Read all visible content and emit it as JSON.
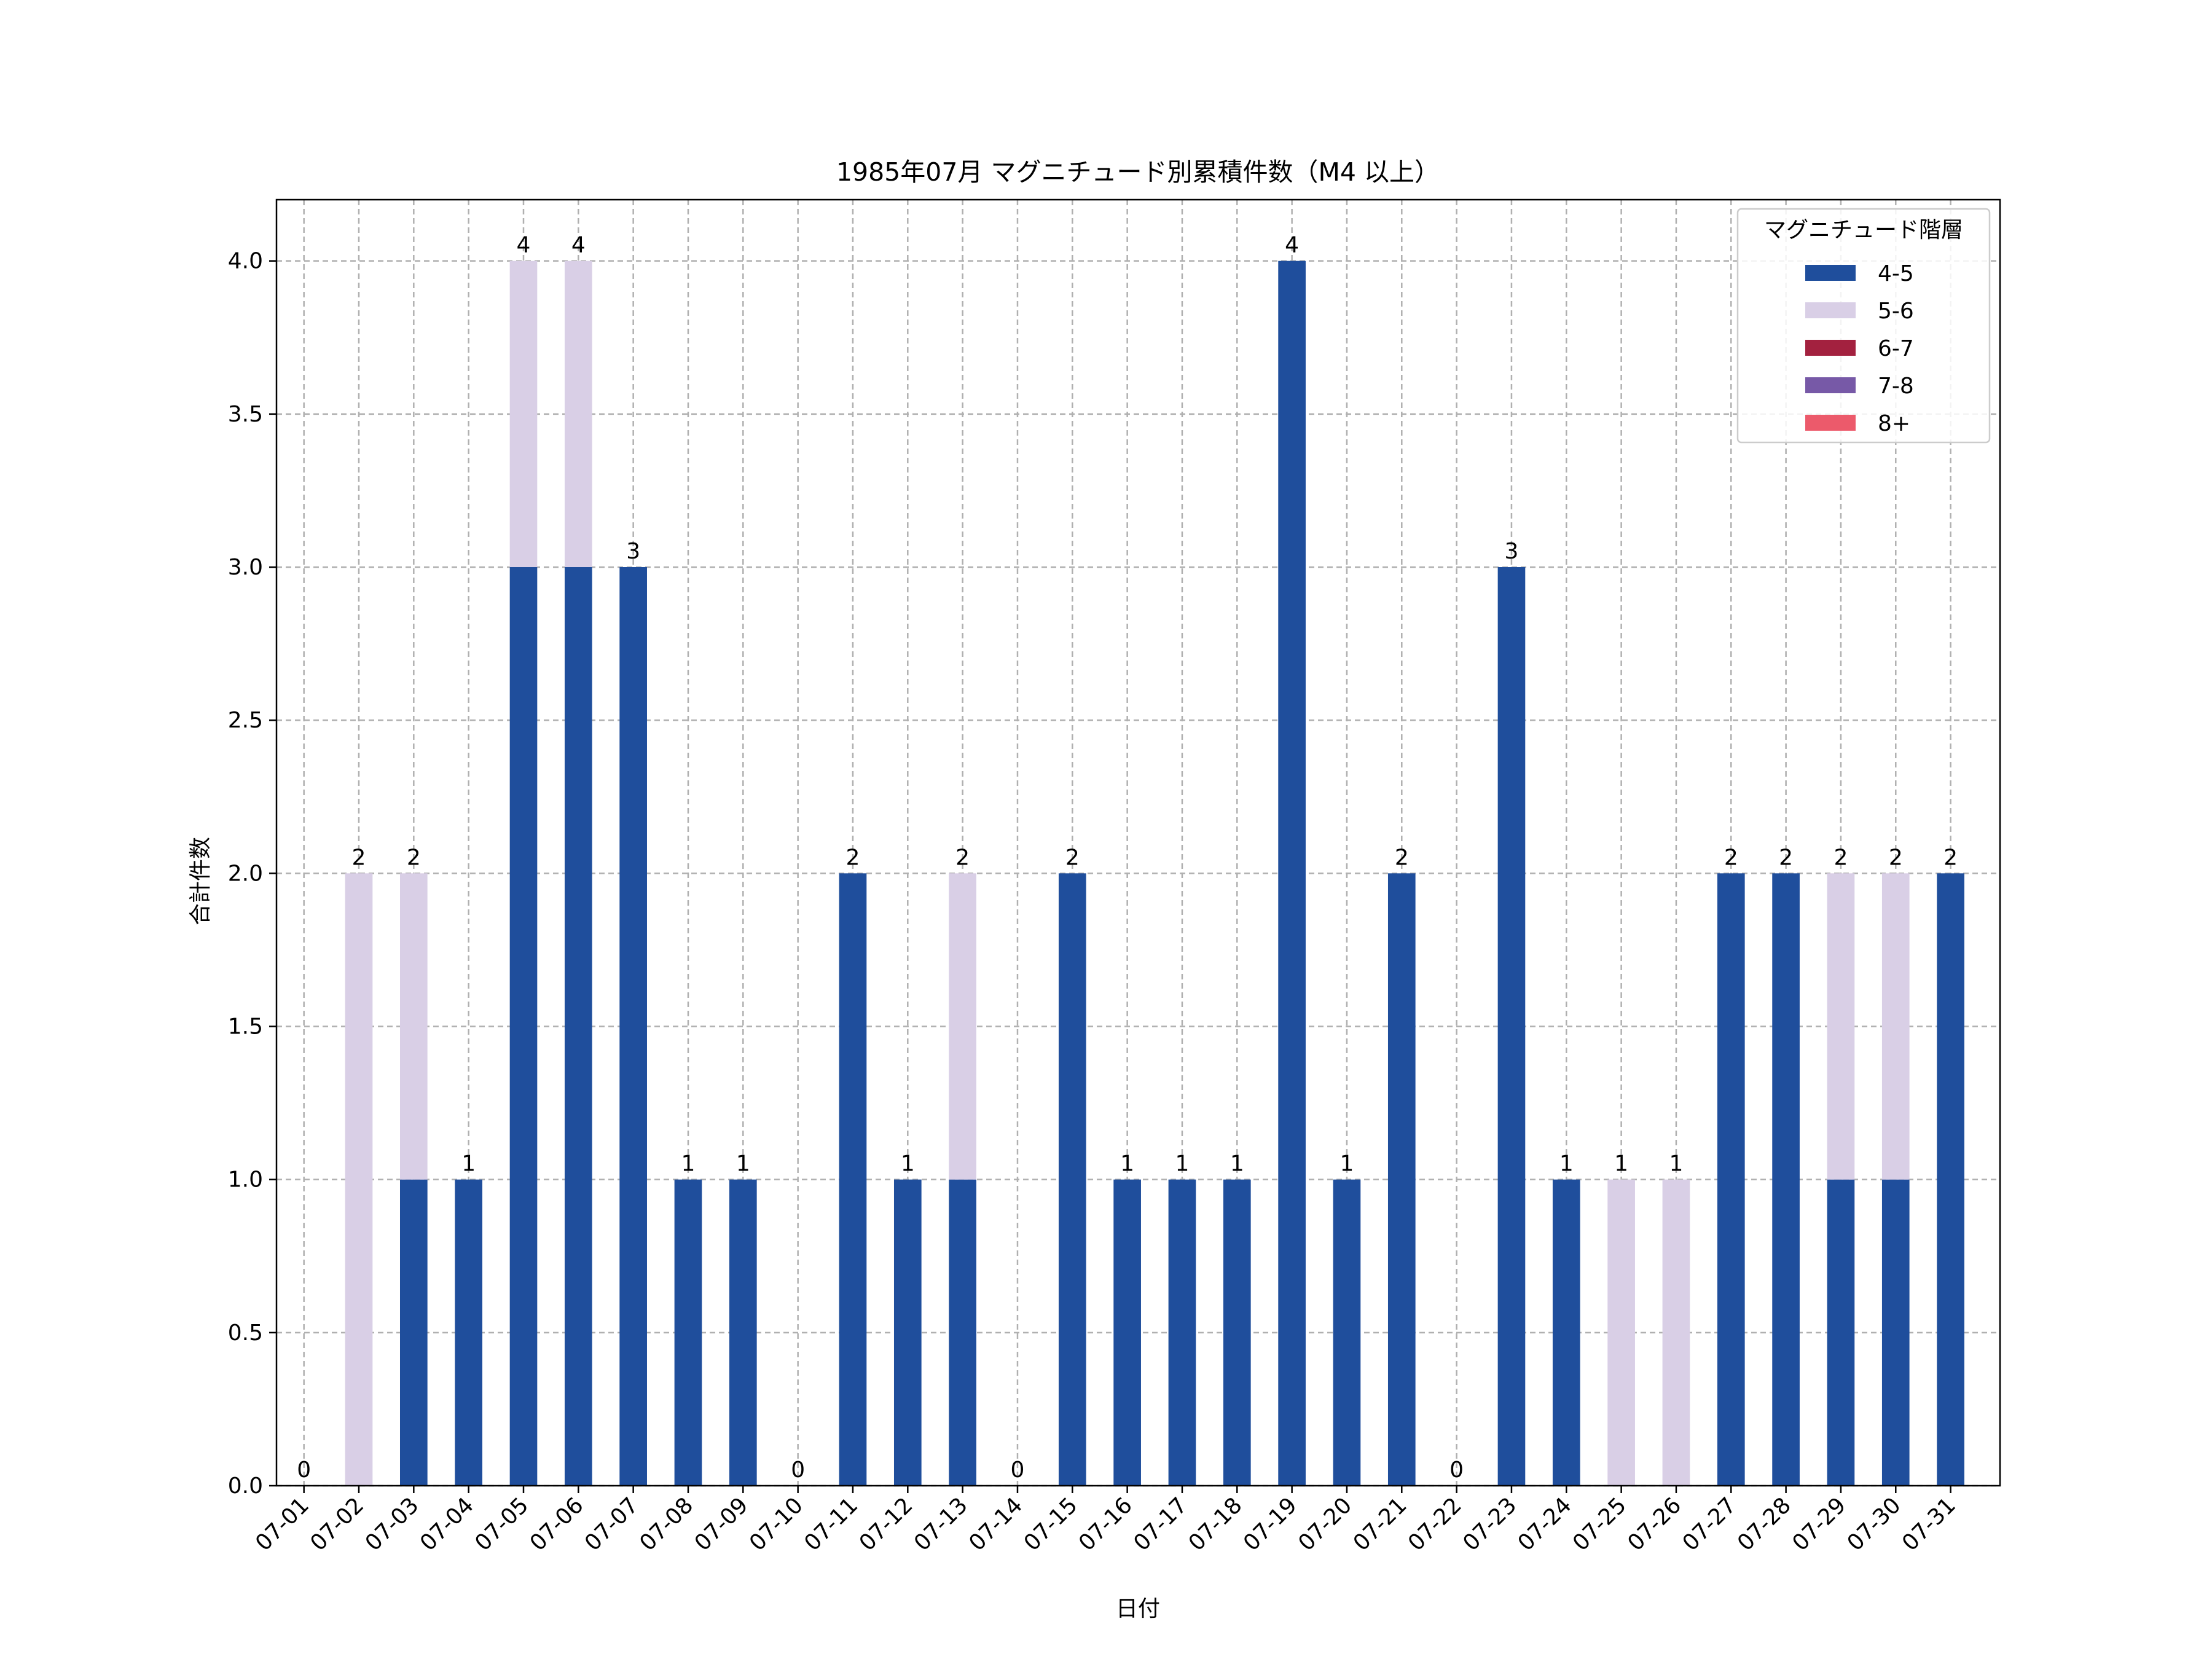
{
  "chart_data": {
    "type": "bar",
    "stacked": true,
    "title": "1985年07月 マグニチュード別累積件数（M4 以上）",
    "xlabel": "日付",
    "ylabel": "合計件数",
    "ylim": [
      0,
      4.2
    ],
    "yticks": [
      "0.0",
      "0.5",
      "1.0",
      "1.5",
      "2.0",
      "2.5",
      "3.0",
      "3.5",
      "4.0"
    ],
    "grid": true,
    "legend": {
      "title": "マグニチュード階層",
      "placement": "top-right"
    },
    "categories": [
      "07-01",
      "07-02",
      "07-03",
      "07-04",
      "07-05",
      "07-06",
      "07-07",
      "07-08",
      "07-09",
      "07-10",
      "07-11",
      "07-12",
      "07-13",
      "07-14",
      "07-15",
      "07-16",
      "07-17",
      "07-18",
      "07-19",
      "07-20",
      "07-21",
      "07-22",
      "07-23",
      "07-24",
      "07-25",
      "07-26",
      "07-27",
      "07-28",
      "07-29",
      "07-30",
      "07-31"
    ],
    "series": [
      {
        "name": "4-5",
        "color": "#1f4e9c",
        "values": [
          0,
          0,
          1,
          1,
          3,
          3,
          3,
          1,
          1,
          0,
          2,
          1,
          1,
          0,
          2,
          1,
          1,
          1,
          4,
          1,
          2,
          0,
          3,
          1,
          0,
          0,
          2,
          2,
          1,
          1,
          2
        ]
      },
      {
        "name": "5-6",
        "color": "#d9cfe6",
        "values": [
          0,
          2,
          1,
          0,
          1,
          1,
          0,
          0,
          0,
          0,
          0,
          0,
          1,
          0,
          0,
          0,
          0,
          0,
          0,
          0,
          0,
          0,
          0,
          0,
          1,
          1,
          0,
          0,
          1,
          1,
          0
        ]
      },
      {
        "name": "6-7",
        "color": "#a3213f",
        "values": [
          0,
          0,
          0,
          0,
          0,
          0,
          0,
          0,
          0,
          0,
          0,
          0,
          0,
          0,
          0,
          0,
          0,
          0,
          0,
          0,
          0,
          0,
          0,
          0,
          0,
          0,
          0,
          0,
          0,
          0,
          0
        ]
      },
      {
        "name": "7-8",
        "color": "#7759a7",
        "values": [
          0,
          0,
          0,
          0,
          0,
          0,
          0,
          0,
          0,
          0,
          0,
          0,
          0,
          0,
          0,
          0,
          0,
          0,
          0,
          0,
          0,
          0,
          0,
          0,
          0,
          0,
          0,
          0,
          0,
          0,
          0
        ]
      },
      {
        "name": "8+",
        "color": "#ec5a6b",
        "values": [
          0,
          0,
          0,
          0,
          0,
          0,
          0,
          0,
          0,
          0,
          0,
          0,
          0,
          0,
          0,
          0,
          0,
          0,
          0,
          0,
          0,
          0,
          0,
          0,
          0,
          0,
          0,
          0,
          0,
          0,
          0
        ]
      }
    ],
    "totals": [
      0,
      2,
      2,
      1,
      4,
      4,
      3,
      1,
      1,
      0,
      2,
      1,
      2,
      0,
      2,
      1,
      1,
      1,
      4,
      1,
      2,
      0,
      3,
      1,
      1,
      1,
      2,
      2,
      2,
      2,
      2
    ]
  }
}
